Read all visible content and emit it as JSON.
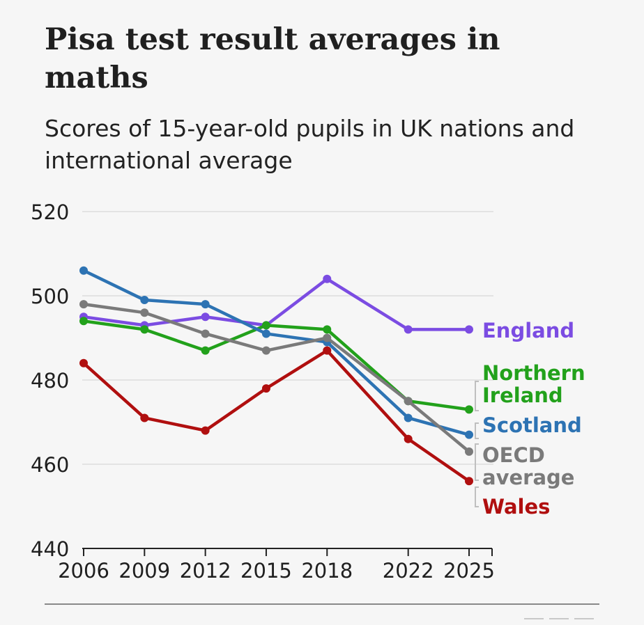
{
  "title": "Pisa test result averages in maths",
  "subtitle": "Scores of 15-year-old pupils in UK nations and international average",
  "chart_data": {
    "type": "line",
    "title": "Pisa test result averages in maths",
    "subtitle": "Scores of 15-year-old pupils in UK nations and international average",
    "x": [
      2006,
      2009,
      2012,
      2015,
      2018,
      2022,
      2025
    ],
    "x_tick_labels": [
      "2006",
      "2009",
      "2012",
      "2015",
      "2018",
      "2022",
      "2025"
    ],
    "ylim": [
      440,
      520
    ],
    "y_ticks": [
      440,
      460,
      480,
      500,
      520
    ],
    "y_tick_labels": [
      "440",
      "460",
      "480",
      "500",
      "520"
    ],
    "grid": true,
    "legend": "direct labels at right end of lines",
    "series": [
      {
        "name": "England",
        "label_lines": [
          "England"
        ],
        "color": "#7b4ce2",
        "values": [
          495,
          493,
          495,
          493,
          504,
          492,
          492
        ]
      },
      {
        "name": "Northern Ireland",
        "label_lines": [
          "Northern",
          "Ireland"
        ],
        "color": "#22a11b",
        "values": [
          494,
          492,
          487,
          493,
          492,
          475,
          473
        ]
      },
      {
        "name": "Scotland",
        "label_lines": [
          "Scotland"
        ],
        "color": "#2d73b3",
        "values": [
          506,
          499,
          498,
          491,
          489,
          471,
          467
        ]
      },
      {
        "name": "OECD average",
        "label_lines": [
          "OECD",
          "average"
        ],
        "color": "#7a7a7a",
        "values": [
          498,
          496,
          491,
          487,
          490,
          475,
          463
        ]
      },
      {
        "name": "Wales",
        "label_lines": [
          "Wales"
        ],
        "color": "#b00f0f",
        "values": [
          484,
          471,
          468,
          478,
          487,
          466,
          456
        ]
      }
    ]
  },
  "colors": {
    "background": "#f6f6f6",
    "grid": "#e3e3e3",
    "axis": "#222222",
    "label_bracket": "#bfbfbf",
    "footer_rule": "#888888"
  }
}
